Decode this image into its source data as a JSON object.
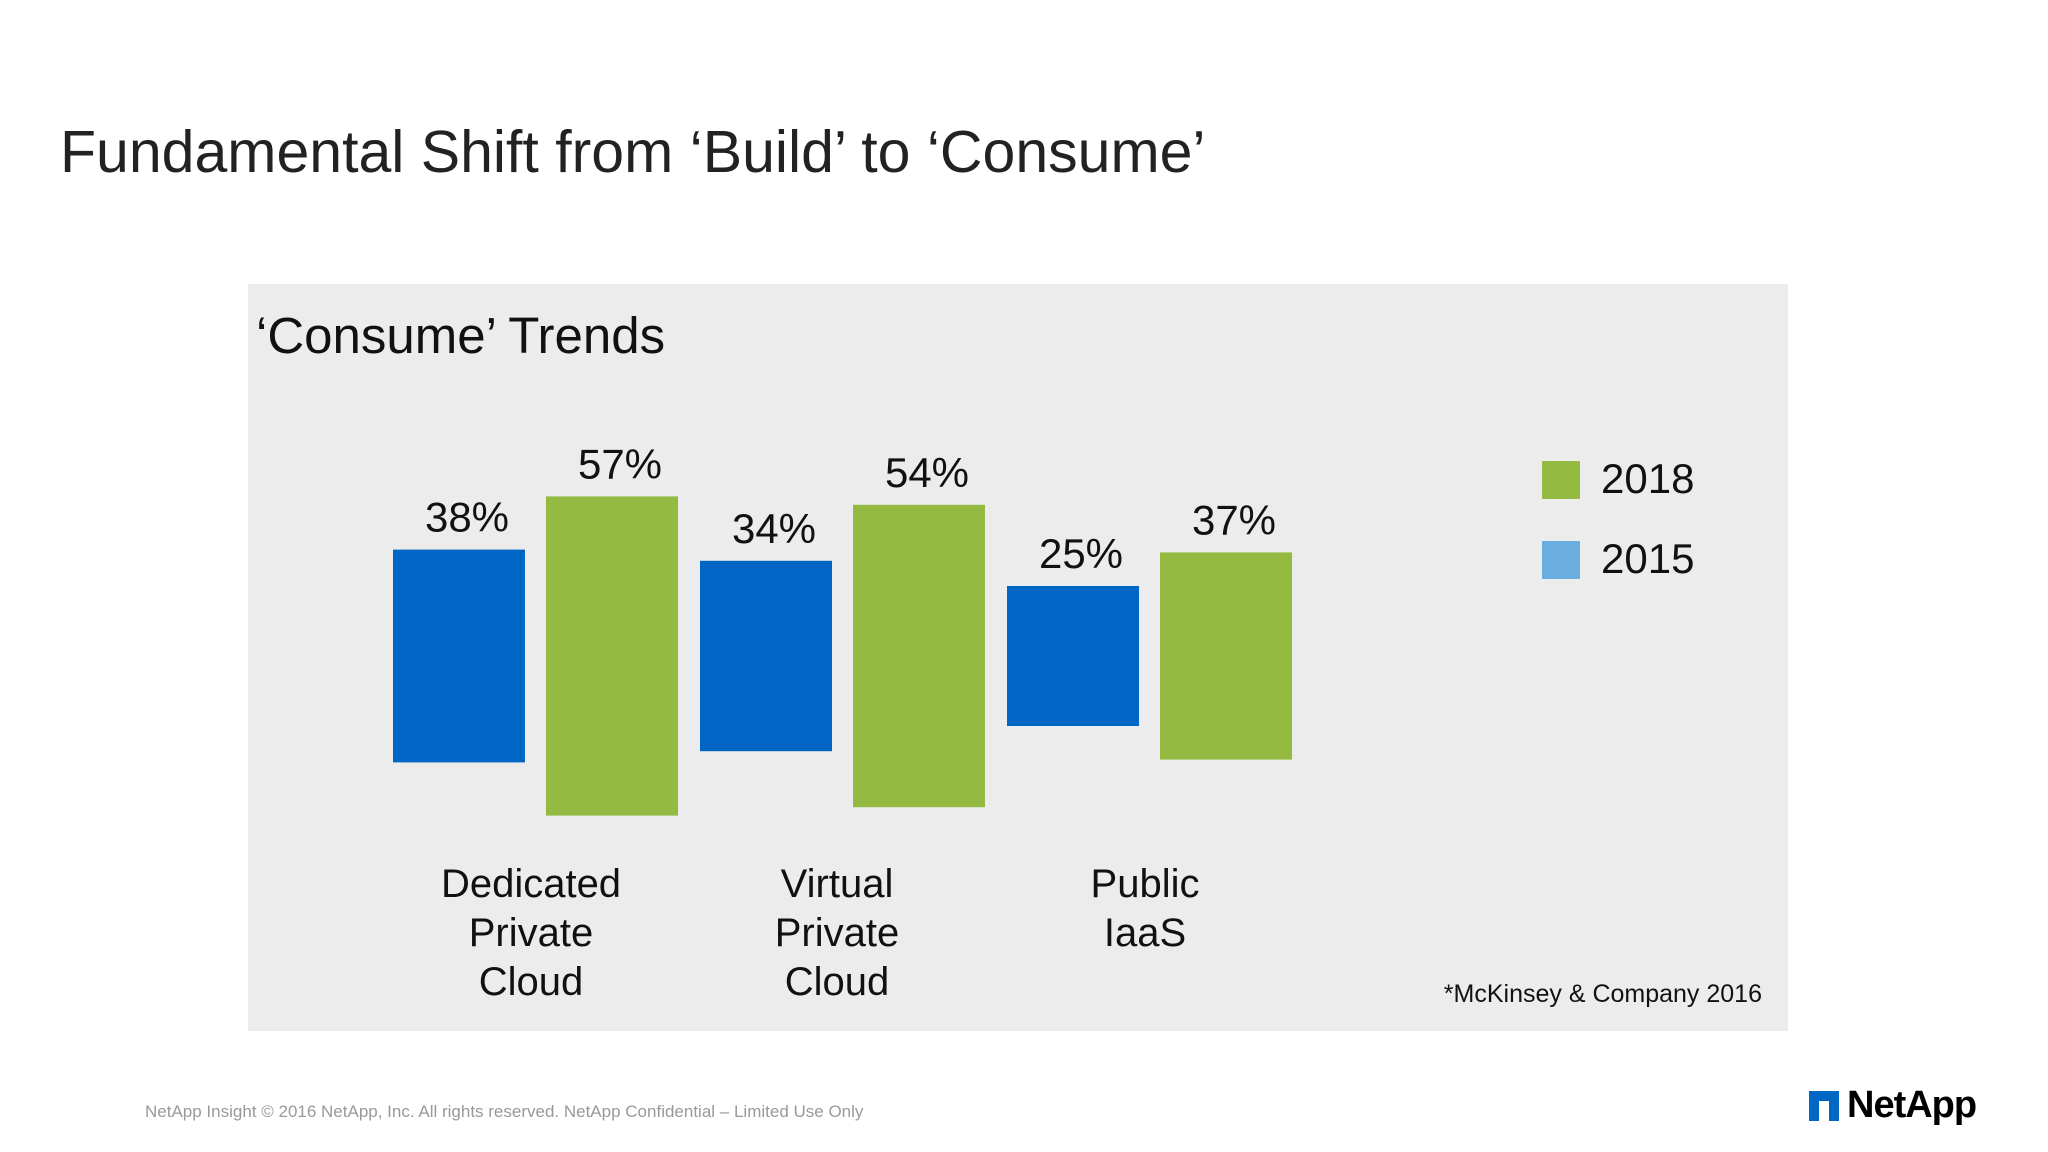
{
  "slide": {
    "title": "Fundamental Shift from ‘Build’ to ‘Consume’",
    "footer": "NetApp Insight  © 2016 NetApp, Inc. All rights reserved. NetApp Confidential – Limited Use Only",
    "logo_text": "NetApp"
  },
  "chart_data": {
    "type": "bar",
    "title": "‘Consume’ Trends",
    "categories": [
      [
        "Dedicated",
        "Private",
        "Cloud"
      ],
      [
        "Virtual",
        "Private",
        "Cloud"
      ],
      [
        "Public",
        "IaaS"
      ]
    ],
    "series": [
      {
        "name": "2015",
        "color": "#0066c6",
        "values": [
          38,
          34,
          25
        ],
        "labels": [
          "38%",
          "34%",
          "25%"
        ]
      },
      {
        "name": "2018",
        "color": "#94ba42",
        "values": [
          57,
          54,
          37
        ],
        "labels": [
          "57%",
          "54%",
          "37%"
        ]
      }
    ],
    "legend": {
      "placement": "right",
      "items": [
        {
          "label": "2018",
          "color": "#94ba42"
        },
        {
          "label": "2015",
          "color": "#6aaee0"
        }
      ]
    },
    "unit": "%",
    "grid": false,
    "axes_visible": false,
    "source_note": "*McKinsey & Company 2016"
  }
}
